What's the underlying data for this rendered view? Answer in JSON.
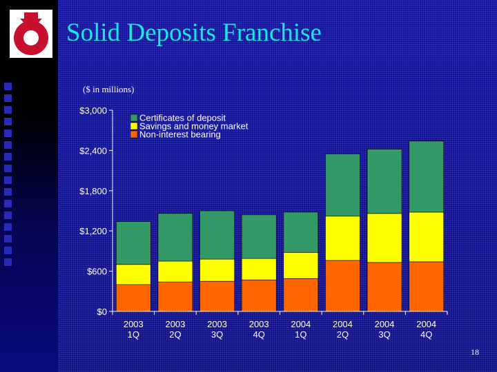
{
  "slide": {
    "title": "Solid Deposits Franchise",
    "subtitle": "($ in millions)",
    "page_number": "18"
  },
  "colors": {
    "title": "#18e8e0",
    "non_interest_bearing": "#ff6600",
    "savings_money_market": "#ffff00",
    "certificates_of_deposit": "#339966",
    "logo_red": "#c8102e"
  },
  "chart_data": {
    "type": "bar",
    "stacked": true,
    "categories": [
      "2003\n1Q",
      "2003\n2Q",
      "2003\n3Q",
      "2003\n4Q",
      "2004\n1Q",
      "2004\n2Q",
      "2004\n3Q",
      "2004\n4Q"
    ],
    "series": [
      {
        "name": "Non-interest bearing",
        "color": "#ff6600",
        "values": [
          400,
          440,
          450,
          470,
          490,
          760,
          730,
          740
        ]
      },
      {
        "name": "Savings and money market",
        "color": "#ffff00",
        "values": [
          300,
          310,
          330,
          320,
          390,
          660,
          730,
          740
        ]
      },
      {
        "name": "Certificates of deposit",
        "color": "#339966",
        "values": [
          640,
          710,
          720,
          650,
          600,
          930,
          960,
          1060
        ]
      }
    ],
    "ylim": [
      0,
      3000
    ],
    "yticks": [
      0,
      600,
      1200,
      1800,
      2400,
      3000
    ],
    "ytick_labels": [
      "$0",
      "$600",
      "$1,200",
      "$1,800",
      "$2,400",
      "$3,000"
    ],
    "legend": [
      "Certificates of deposit",
      "Savings and money market",
      "Non-interest bearing"
    ],
    "legend_position": "top-left",
    "grid": false
  }
}
